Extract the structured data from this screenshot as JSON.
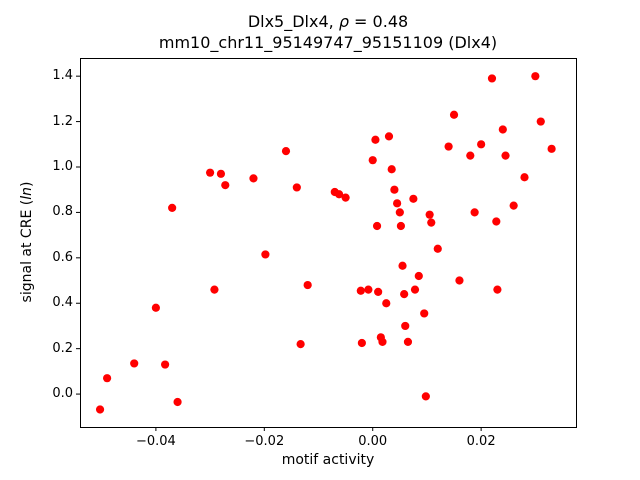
{
  "title": {
    "part1": "Dlx5_Dlx4, ",
    "rho": "ρ",
    "part2": " = 0.48"
  },
  "subtitle": "mm10_chr11_95149747_95151109 (Dlx4)",
  "ylabel_parts": {
    "prefix": "signal at CRE (",
    "italic": "ln",
    "suffix": ")"
  },
  "chart_data": {
    "type": "scatter",
    "title": "Dlx5_Dlx4, ρ = 0.48",
    "subtitle": "mm10_chr11_95149747_95151109 (Dlx4)",
    "xlabel": "motif activity",
    "ylabel": "signal at CRE (ln)",
    "legend": "none",
    "grid": false,
    "marker_color": "#ff0000",
    "xlim": [
      -0.054,
      0.0375
    ],
    "ylim": [
      -0.145,
      1.48
    ],
    "xticks": {
      "values": [
        -0.04,
        -0.02,
        0.0,
        0.02
      ],
      "labels": [
        "−0.04",
        "−0.02",
        "0.00",
        "0.02"
      ]
    },
    "yticks": {
      "values": [
        0.0,
        0.2,
        0.4,
        0.6,
        0.8,
        1.0,
        1.2,
        1.4
      ],
      "labels": [
        "0.0",
        "0.2",
        "0.4",
        "0.6",
        "0.8",
        "1.0",
        "1.2",
        "1.4"
      ]
    },
    "points": [
      [
        -0.0503,
        -0.068
      ],
      [
        -0.049,
        0.07
      ],
      [
        -0.044,
        0.135
      ],
      [
        -0.04,
        0.38
      ],
      [
        -0.0383,
        0.13
      ],
      [
        -0.037,
        0.82
      ],
      [
        -0.036,
        -0.035
      ],
      [
        -0.03,
        0.975
      ],
      [
        -0.0292,
        0.46
      ],
      [
        -0.028,
        0.97
      ],
      [
        -0.0272,
        0.92
      ],
      [
        -0.022,
        0.95
      ],
      [
        -0.0198,
        0.615
      ],
      [
        -0.016,
        1.07
      ],
      [
        -0.014,
        0.91
      ],
      [
        -0.0133,
        0.22
      ],
      [
        -0.012,
        0.48
      ],
      [
        -0.007,
        0.89
      ],
      [
        -0.0062,
        0.88
      ],
      [
        -0.005,
        0.865
      ],
      [
        -0.0022,
        0.455
      ],
      [
        -0.002,
        0.225
      ],
      [
        -0.0008,
        0.46
      ],
      [
        0.0,
        1.03
      ],
      [
        0.0005,
        1.12
      ],
      [
        0.0008,
        0.74
      ],
      [
        0.001,
        0.45
      ],
      [
        0.0015,
        0.25
      ],
      [
        0.0018,
        0.23
      ],
      [
        0.0025,
        0.4
      ],
      [
        0.003,
        1.135
      ],
      [
        0.0035,
        0.99
      ],
      [
        0.004,
        0.9
      ],
      [
        0.0045,
        0.84
      ],
      [
        0.005,
        0.8
      ],
      [
        0.0052,
        0.74
      ],
      [
        0.0055,
        0.565
      ],
      [
        0.0058,
        0.44
      ],
      [
        0.006,
        0.3
      ],
      [
        0.0065,
        0.23
      ],
      [
        0.0075,
        0.86
      ],
      [
        0.0078,
        0.46
      ],
      [
        0.0085,
        0.52
      ],
      [
        0.0095,
        0.355
      ],
      [
        0.0098,
        -0.01
      ],
      [
        0.0105,
        0.79
      ],
      [
        0.0108,
        0.755
      ],
      [
        0.012,
        0.64
      ],
      [
        0.014,
        1.09
      ],
      [
        0.015,
        1.23
      ],
      [
        0.016,
        0.5
      ],
      [
        0.018,
        1.05
      ],
      [
        0.0188,
        0.8
      ],
      [
        0.02,
        1.1
      ],
      [
        0.022,
        1.39
      ],
      [
        0.0228,
        0.76
      ],
      [
        0.023,
        0.46
      ],
      [
        0.024,
        1.165
      ],
      [
        0.0245,
        1.05
      ],
      [
        0.026,
        0.83
      ],
      [
        0.028,
        0.955
      ],
      [
        0.03,
        1.4
      ],
      [
        0.031,
        1.2
      ],
      [
        0.033,
        1.08
      ]
    ]
  }
}
